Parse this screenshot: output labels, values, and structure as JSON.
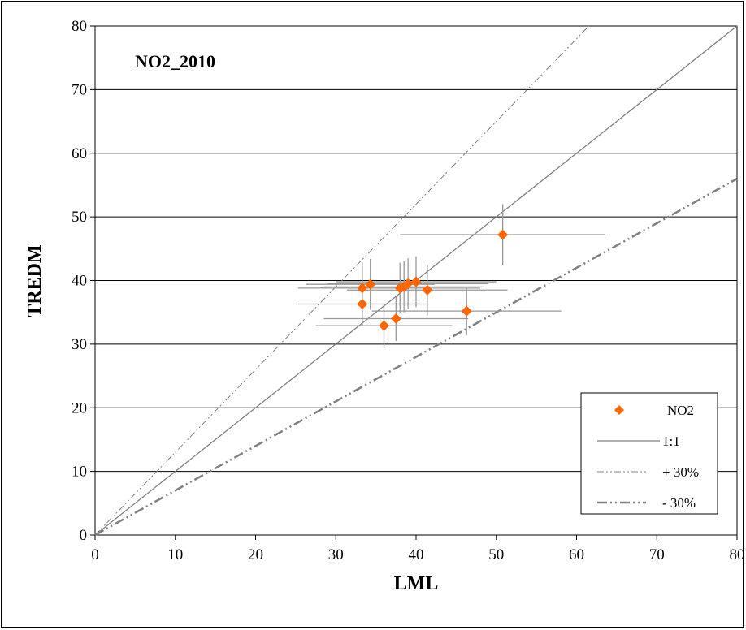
{
  "chart_data": {
    "type": "scatter",
    "title": "NO2_2010",
    "xlabel": "LML",
    "ylabel": "TREDM",
    "xlim": [
      0,
      80
    ],
    "ylim": [
      0,
      80
    ],
    "xticks": [
      "0",
      "10",
      "20",
      "30",
      "40",
      "50",
      "60",
      "70",
      "80"
    ],
    "yticks": [
      "0",
      "10",
      "20",
      "30",
      "40",
      "50",
      "60",
      "70",
      "80"
    ],
    "grid": "horizontal",
    "legend_position": "bottom-right",
    "colors": {
      "marker": "#ff6600",
      "error_bar": "#999999",
      "reference_line": "#808080",
      "grid": "#000000"
    },
    "series": [
      {
        "name": "NO2",
        "points": [
          {
            "x": 33.3,
            "y": 38.8,
            "xerr": 8.0,
            "yerr": 4.0
          },
          {
            "x": 33.3,
            "y": 36.3,
            "xerr": 8.0,
            "yerr": 3.5
          },
          {
            "x": 34.3,
            "y": 39.4,
            "xerr": 8.0,
            "yerr": 4.0
          },
          {
            "x": 36.0,
            "y": 32.9,
            "xerr": 8.5,
            "yerr": 3.5
          },
          {
            "x": 37.5,
            "y": 34.0,
            "xerr": 9.0,
            "yerr": 3.5
          },
          {
            "x": 38.0,
            "y": 38.8,
            "xerr": 10.0,
            "yerr": 4.0
          },
          {
            "x": 38.5,
            "y": 39.0,
            "xerr": 10.0,
            "yerr": 4.0
          },
          {
            "x": 39.0,
            "y": 39.5,
            "xerr": 10.0,
            "yerr": 4.0
          },
          {
            "x": 40.0,
            "y": 39.8,
            "xerr": 10.0,
            "yerr": 4.0
          },
          {
            "x": 41.4,
            "y": 38.5,
            "xerr": 10.0,
            "yerr": 4.0
          },
          {
            "x": 46.3,
            "y": 35.2,
            "xerr": 11.8,
            "yerr": 3.8
          },
          {
            "x": 50.8,
            "y": 47.2,
            "xerr": 12.8,
            "yerr": 4.8
          }
        ]
      },
      {
        "name": "1:1",
        "slope": 1.0
      },
      {
        "name": "+ 30%",
        "slope": 1.3
      },
      {
        "name": "- 30%",
        "slope": 0.7
      }
    ]
  }
}
